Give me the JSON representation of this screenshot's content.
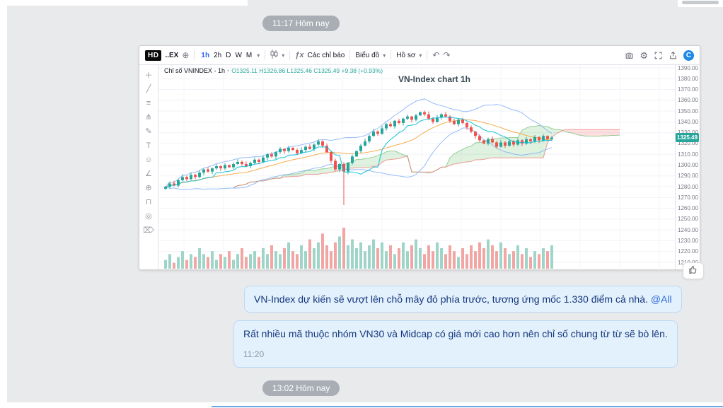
{
  "timestamps": {
    "first": "11:17 Hôm nay",
    "second": "13:02 Hôm nay"
  },
  "messages": [
    {
      "text": "VN-Index dự kiến sẽ vượt lên chỗ mây đỏ phía trước, tương ứng mốc 1.330 điểm cả nhà.",
      "mention": "@All"
    },
    {
      "text": "Rất nhiều mã thuộc nhóm VN30 và Midcap có giá mới cao hơn nên chỉ số chung từ từ sẽ bò lên.",
      "time": "11:20"
    }
  ],
  "chart": {
    "toolbar": {
      "hd": "HD",
      "symbol": "..EX",
      "compare": "⊕",
      "timeframes": [
        "1h",
        "2h",
        "D",
        "W",
        "M"
      ],
      "caret": "▾",
      "fx": "ƒx",
      "indicators_label": "Các chỉ báo",
      "chart_menu": "Biểu đồ",
      "profile_menu": "Hồ sơ",
      "undo": "↶",
      "redo": "↷",
      "logo": "C",
      "right_icons": [
        "screenshot-icon",
        "settings-icon",
        "fullscreen-icon",
        "share-icon"
      ]
    },
    "tools": [
      {
        "name": "crosshair-tool",
        "glyph": "＋"
      },
      {
        "name": "trendline-tool",
        "glyph": "╱"
      },
      {
        "name": "fib-tool",
        "glyph": "≡"
      },
      {
        "name": "pitchfork-tool",
        "glyph": "⋔"
      },
      {
        "name": "brush-tool",
        "glyph": "✎"
      },
      {
        "name": "text-tool",
        "glyph": "T"
      },
      {
        "name": "emoji-tool",
        "glyph": "☺"
      },
      {
        "name": "measure-tool",
        "glyph": "∠"
      },
      {
        "name": "zoom-tool",
        "glyph": "⊕"
      },
      {
        "name": "magnet-tool",
        "glyph": "⊓"
      },
      {
        "name": "visibility-tool",
        "glyph": "◎"
      },
      {
        "name": "delete-tool",
        "glyph": "⌦"
      }
    ],
    "legend": {
      "name": "Chỉ số VNINDEX - 1h",
      "separator": "•",
      "ohlc": "O1325.11 H1326.86 L1325.46 C1325.49 +9.38 (+0.93%)"
    },
    "title": "VN-Index chart 1h",
    "colors": {
      "up": "#26a69a",
      "down": "#ef5350",
      "bb_band": "#8ab4f8",
      "bb_mid": "#f6a33a",
      "tenkan": "#00bcd4",
      "cloud_up": "rgba(76,175,80,0.18)",
      "cloud_down": "rgba(239,83,80,0.18)",
      "vol_up": "#9ed5c8",
      "vol_down": "#f2a6a4"
    },
    "chart_data": {
      "type": "candlestick",
      "symbol": "VNINDEX",
      "interval": "1h",
      "title": "VN-Index chart 1h",
      "price_axis": {
        "min": 1210,
        "max": 1390,
        "step": 10
      },
      "last_price": 1325.49,
      "overlays": [
        "Bollinger Bands",
        "Ichimoku Cloud",
        "Volume"
      ],
      "closes": [
        1280,
        1283,
        1281,
        1286,
        1289,
        1287,
        1291,
        1289,
        1293,
        1296,
        1294,
        1297,
        1299,
        1297,
        1300,
        1298,
        1301,
        1303,
        1301,
        1299,
        1302,
        1305,
        1303,
        1307,
        1310,
        1308,
        1312,
        1315,
        1313,
        1316,
        1314,
        1311,
        1314,
        1317,
        1315,
        1319,
        1322,
        1318,
        1312,
        1304,
        1296,
        1301,
        1294,
        1302,
        1308,
        1313,
        1318,
        1322,
        1327,
        1331,
        1329,
        1334,
        1338,
        1336,
        1341,
        1339,
        1343,
        1345,
        1342,
        1346,
        1349,
        1347,
        1343,
        1340,
        1344,
        1347,
        1345,
        1341,
        1338,
        1342,
        1339,
        1335,
        1331,
        1327,
        1323,
        1320,
        1324,
        1321,
        1317,
        1321,
        1318,
        1322,
        1319,
        1323,
        1320,
        1324,
        1322,
        1326,
        1323,
        1327,
        1324,
        1325.49
      ],
      "volumes": [
        3,
        5,
        2,
        4,
        6,
        3,
        5,
        4,
        7,
        5,
        4,
        6,
        3,
        5,
        4,
        6,
        3,
        5,
        7,
        4,
        5,
        6,
        4,
        7,
        5,
        8,
        6,
        5,
        7,
        9,
        6,
        5,
        8,
        6,
        10,
        7,
        9,
        12,
        8,
        6,
        9,
        11,
        14,
        8,
        10,
        7,
        9,
        6,
        8,
        10,
        7,
        9,
        6,
        8,
        5,
        7,
        9,
        6,
        8,
        10,
        7,
        5,
        8,
        6,
        9,
        7,
        5,
        8,
        6,
        4,
        7,
        5,
        8,
        6,
        9,
        7,
        10,
        8,
        6,
        9,
        7,
        5,
        6,
        8,
        5,
        7,
        4,
        6,
        5,
        7,
        6,
        8
      ],
      "special_lows": {
        "42": 1263
      }
    }
  }
}
